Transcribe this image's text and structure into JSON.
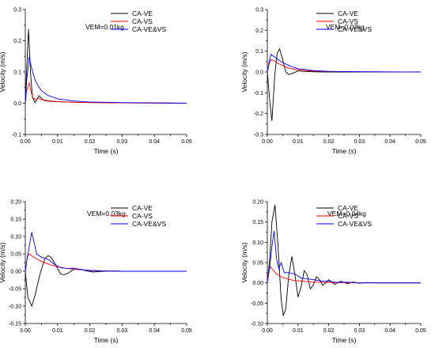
{
  "colors": {
    "ca_ve": "#000000",
    "ca_vs": "#ff0000",
    "ca_vevs": "#0000ff"
  },
  "chart_data": [
    {
      "type": "line",
      "annotation": "VEM=0.01kg",
      "xlabel": "Time (s)",
      "ylabel": "Velocity (m/s)",
      "xlim": [
        0,
        0.05
      ],
      "ylim": [
        -0.1,
        0.3
      ],
      "xticks": [
        "0.00",
        "0.01",
        "0.02",
        "0.03",
        "0.04",
        "0.05"
      ],
      "yticks": [
        "-0.1",
        "0.0",
        "0.1",
        "0.2",
        "0.3"
      ],
      "legend": "top-right",
      "series": [
        {
          "name": "CA-VE",
          "color": "#000000",
          "points": [
            [
              0,
              0
            ],
            [
              0.0003,
              0.08
            ],
            [
              0.001,
              0.237
            ],
            [
              0.0016,
              0.1
            ],
            [
              0.0022,
              0.02
            ],
            [
              0.003,
              0.002
            ],
            [
              0.0036,
              0.012
            ],
            [
              0.0042,
              0.024
            ],
            [
              0.005,
              0.016
            ],
            [
              0.006,
              0.008
            ],
            [
              0.008,
              0.006
            ],
            [
              0.01,
              0.005
            ],
            [
              0.015,
              0.003
            ],
            [
              0.02,
              0.002
            ],
            [
              0.03,
              0.001
            ],
            [
              0.05,
              0.0
            ]
          ]
        },
        {
          "name": "CA-VS",
          "color": "#ff0000",
          "points": [
            [
              0,
              0
            ],
            [
              0.0004,
              0.04
            ],
            [
              0.0012,
              0.065
            ],
            [
              0.0018,
              0.035
            ],
            [
              0.0024,
              0.018
            ],
            [
              0.003,
              0.012
            ],
            [
              0.004,
              0.016
            ],
            [
              0.005,
              0.012
            ],
            [
              0.007,
              0.008
            ],
            [
              0.01,
              0.005
            ],
            [
              0.015,
              0.003
            ],
            [
              0.02,
              0.002
            ],
            [
              0.03,
              0.001
            ],
            [
              0.05,
              0.0
            ]
          ]
        },
        {
          "name": "CA-VE&VS",
          "color": "#0000ff",
          "points": [
            [
              0,
              0
            ],
            [
              0.0004,
              0.07
            ],
            [
              0.0012,
              0.148
            ],
            [
              0.002,
              0.11
            ],
            [
              0.003,
              0.075
            ],
            [
              0.004,
              0.055
            ],
            [
              0.005,
              0.04
            ],
            [
              0.007,
              0.025
            ],
            [
              0.01,
              0.014
            ],
            [
              0.015,
              0.007
            ],
            [
              0.02,
              0.004
            ],
            [
              0.03,
              0.002
            ],
            [
              0.04,
              0.001
            ],
            [
              0.05,
              0.0
            ]
          ]
        }
      ]
    },
    {
      "type": "line",
      "annotation": "VEM=0.02kg",
      "xlabel": "Time (s)",
      "ylabel": "Velocity (m/s)",
      "xlim": [
        0,
        0.05
      ],
      "ylim": [
        -0.3,
        0.3
      ],
      "xticks": [
        "0.00",
        "0.01",
        "0.02",
        "0.03",
        "0.04",
        "0.05"
      ],
      "yticks": [
        "-0.3",
        "-0.2",
        "-0.1",
        "0.0",
        "0.1",
        "0.2",
        "0.3"
      ],
      "legend": "top-right",
      "series": [
        {
          "name": "CA-VE",
          "color": "#000000",
          "points": [
            [
              0,
              0
            ],
            [
              0.0008,
              -0.14
            ],
            [
              0.0015,
              -0.235
            ],
            [
              0.0024,
              -0.02
            ],
            [
              0.0032,
              0.09
            ],
            [
              0.004,
              0.11
            ],
            [
              0.005,
              0.06
            ],
            [
              0.006,
              0.0
            ],
            [
              0.007,
              -0.012
            ],
            [
              0.0085,
              -0.005
            ],
            [
              0.01,
              0.005
            ],
            [
              0.012,
              0.003
            ],
            [
              0.015,
              0.001
            ],
            [
              0.02,
              0.0
            ],
            [
              0.05,
              0.0
            ]
          ]
        },
        {
          "name": "CA-VS",
          "color": "#ff0000",
          "points": [
            [
              0,
              0
            ],
            [
              0.0005,
              0.035
            ],
            [
              0.0012,
              0.06
            ],
            [
              0.002,
              0.055
            ],
            [
              0.003,
              0.045
            ],
            [
              0.005,
              0.03
            ],
            [
              0.007,
              0.018
            ],
            [
              0.01,
              0.01
            ],
            [
              0.015,
              0.004
            ],
            [
              0.02,
              0.002
            ],
            [
              0.03,
              0.001
            ],
            [
              0.05,
              0.0
            ]
          ]
        },
        {
          "name": "CA-VE&VS",
          "color": "#0000ff",
          "points": [
            [
              0,
              0
            ],
            [
              0.0006,
              0.05
            ],
            [
              0.0012,
              0.085
            ],
            [
              0.002,
              0.075
            ],
            [
              0.003,
              0.065
            ],
            [
              0.005,
              0.045
            ],
            [
              0.008,
              0.025
            ],
            [
              0.01,
              0.016
            ],
            [
              0.015,
              0.007
            ],
            [
              0.02,
              0.003
            ],
            [
              0.03,
              0.001
            ],
            [
              0.05,
              0.0
            ]
          ]
        }
      ]
    },
    {
      "type": "line",
      "annotation": "VEM=0.03kg",
      "xlabel": "Time (s)",
      "ylabel": "Velocity (m/s)",
      "xlim": [
        0,
        0.05
      ],
      "ylim": [
        -0.15,
        0.2
      ],
      "xticks": [
        "0.00",
        "0.01",
        "0.02",
        "0.03",
        "0.04",
        "0.05"
      ],
      "yticks": [
        "-0.15",
        "-0.10",
        "-0.05",
        "0.00",
        "0.05",
        "0.10",
        "0.15",
        "0.20"
      ],
      "legend": "top-right",
      "series": [
        {
          "name": "CA-VE",
          "color": "#000000",
          "points": [
            [
              0,
              0
            ],
            [
              0.0008,
              -0.075
            ],
            [
              0.002,
              -0.1
            ],
            [
              0.003,
              -0.07
            ],
            [
              0.0045,
              -0.01
            ],
            [
              0.006,
              0.035
            ],
            [
              0.007,
              0.045
            ],
            [
              0.008,
              0.04
            ],
            [
              0.009,
              0.025
            ],
            [
              0.01,
              0.008
            ],
            [
              0.011,
              -0.008
            ],
            [
              0.012,
              -0.01
            ],
            [
              0.0135,
              -0.004
            ],
            [
              0.015,
              0.006
            ],
            [
              0.017,
              0.006
            ],
            [
              0.019,
              0.001
            ],
            [
              0.021,
              -0.002
            ],
            [
              0.024,
              0.0
            ],
            [
              0.027,
              0.001
            ],
            [
              0.03,
              0.0
            ],
            [
              0.05,
              0.0
            ]
          ]
        },
        {
          "name": "CA-VS",
          "color": "#ff0000",
          "points": [
            [
              0,
              0
            ],
            [
              0.0006,
              0.04
            ],
            [
              0.0012,
              0.05
            ],
            [
              0.002,
              0.045
            ],
            [
              0.003,
              0.038
            ],
            [
              0.005,
              0.028
            ],
            [
              0.008,
              0.018
            ],
            [
              0.01,
              0.013
            ],
            [
              0.013,
              0.008
            ],
            [
              0.016,
              0.005
            ],
            [
              0.02,
              0.003
            ],
            [
              0.025,
              0.001
            ],
            [
              0.03,
              0.0
            ],
            [
              0.05,
              0.0
            ]
          ]
        },
        {
          "name": "CA-VE&VS",
          "color": "#0000ff",
          "points": [
            [
              0,
              0
            ],
            [
              0.0006,
              0.04
            ],
            [
              0.0012,
              0.07
            ],
            [
              0.002,
              0.112
            ],
            [
              0.0028,
              0.08
            ],
            [
              0.0035,
              0.05
            ],
            [
              0.005,
              0.04
            ],
            [
              0.007,
              0.035
            ],
            [
              0.009,
              0.02
            ],
            [
              0.011,
              0.01
            ],
            [
              0.013,
              0.008
            ],
            [
              0.015,
              0.009
            ],
            [
              0.017,
              0.005
            ],
            [
              0.02,
              0.002
            ],
            [
              0.025,
              0.001
            ],
            [
              0.03,
              0.0
            ],
            [
              0.05,
              0.0
            ]
          ]
        }
      ]
    },
    {
      "type": "line",
      "annotation": "VEM=0.04kg",
      "xlabel": "Time (s)",
      "ylabel": "Velocity (m/s)",
      "xlim": [
        0,
        0.05
      ],
      "ylim": [
        -0.1,
        0.2
      ],
      "xticks": [
        "0.00",
        "0.01",
        "0.02",
        "0.03",
        "0.04",
        "0.05"
      ],
      "yticks": [
        "-0.10",
        "-0.05",
        "0.00",
        "0.05",
        "0.10",
        "0.15",
        "0.20"
      ],
      "legend": "top-right",
      "series": [
        {
          "name": "CA-VE",
          "color": "#000000",
          "points": [
            [
              0,
              0
            ],
            [
              0.0008,
              0.06
            ],
            [
              0.0015,
              0.15
            ],
            [
              0.0025,
              0.192
            ],
            [
              0.0035,
              0.09
            ],
            [
              0.0045,
              -0.04
            ],
            [
              0.0052,
              -0.08
            ],
            [
              0.006,
              -0.065
            ],
            [
              0.007,
              0.02
            ],
            [
              0.008,
              0.065
            ],
            [
              0.009,
              0.02
            ],
            [
              0.01,
              -0.035
            ],
            [
              0.011,
              -0.01
            ],
            [
              0.012,
              0.03
            ],
            [
              0.013,
              0.02
            ],
            [
              0.014,
              -0.015
            ],
            [
              0.015,
              -0.005
            ],
            [
              0.016,
              0.015
            ],
            [
              0.017,
              0.008
            ],
            [
              0.018,
              -0.006
            ],
            [
              0.019,
              0.0
            ],
            [
              0.02,
              0.008
            ],
            [
              0.021,
              0.002
            ],
            [
              0.022,
              -0.004
            ],
            [
              0.023,
              0.001
            ],
            [
              0.024,
              0.004
            ],
            [
              0.026,
              -0.002
            ],
            [
              0.028,
              0.002
            ],
            [
              0.03,
              -0.001
            ],
            [
              0.032,
              0.001
            ],
            [
              0.035,
              0.0
            ],
            [
              0.05,
              0.0
            ]
          ]
        },
        {
          "name": "CA-VS",
          "color": "#ff0000",
          "points": [
            [
              0,
              0
            ],
            [
              0.0005,
              0.03
            ],
            [
              0.001,
              0.04
            ],
            [
              0.002,
              0.03
            ],
            [
              0.003,
              0.022
            ],
            [
              0.005,
              0.013
            ],
            [
              0.008,
              0.007
            ],
            [
              0.01,
              0.005
            ],
            [
              0.015,
              0.002
            ],
            [
              0.02,
              0.001
            ],
            [
              0.03,
              0.0
            ],
            [
              0.05,
              0.0
            ]
          ]
        },
        {
          "name": "CA-VE&VS",
          "color": "#0000ff",
          "points": [
            [
              0,
              0
            ],
            [
              0.0008,
              0.04
            ],
            [
              0.0015,
              0.09
            ],
            [
              0.0022,
              0.128
            ],
            [
              0.003,
              0.06
            ],
            [
              0.0037,
              0.035
            ],
            [
              0.0045,
              0.05
            ],
            [
              0.0055,
              0.025
            ],
            [
              0.007,
              0.025
            ],
            [
              0.009,
              0.022
            ],
            [
              0.011,
              0.012
            ],
            [
              0.013,
              0.01
            ],
            [
              0.015,
              0.008
            ],
            [
              0.018,
              0.004
            ],
            [
              0.02,
              0.004
            ],
            [
              0.023,
              0.001
            ],
            [
              0.026,
              0.002
            ],
            [
              0.03,
              0.0
            ],
            [
              0.05,
              0.0
            ]
          ]
        }
      ]
    }
  ]
}
